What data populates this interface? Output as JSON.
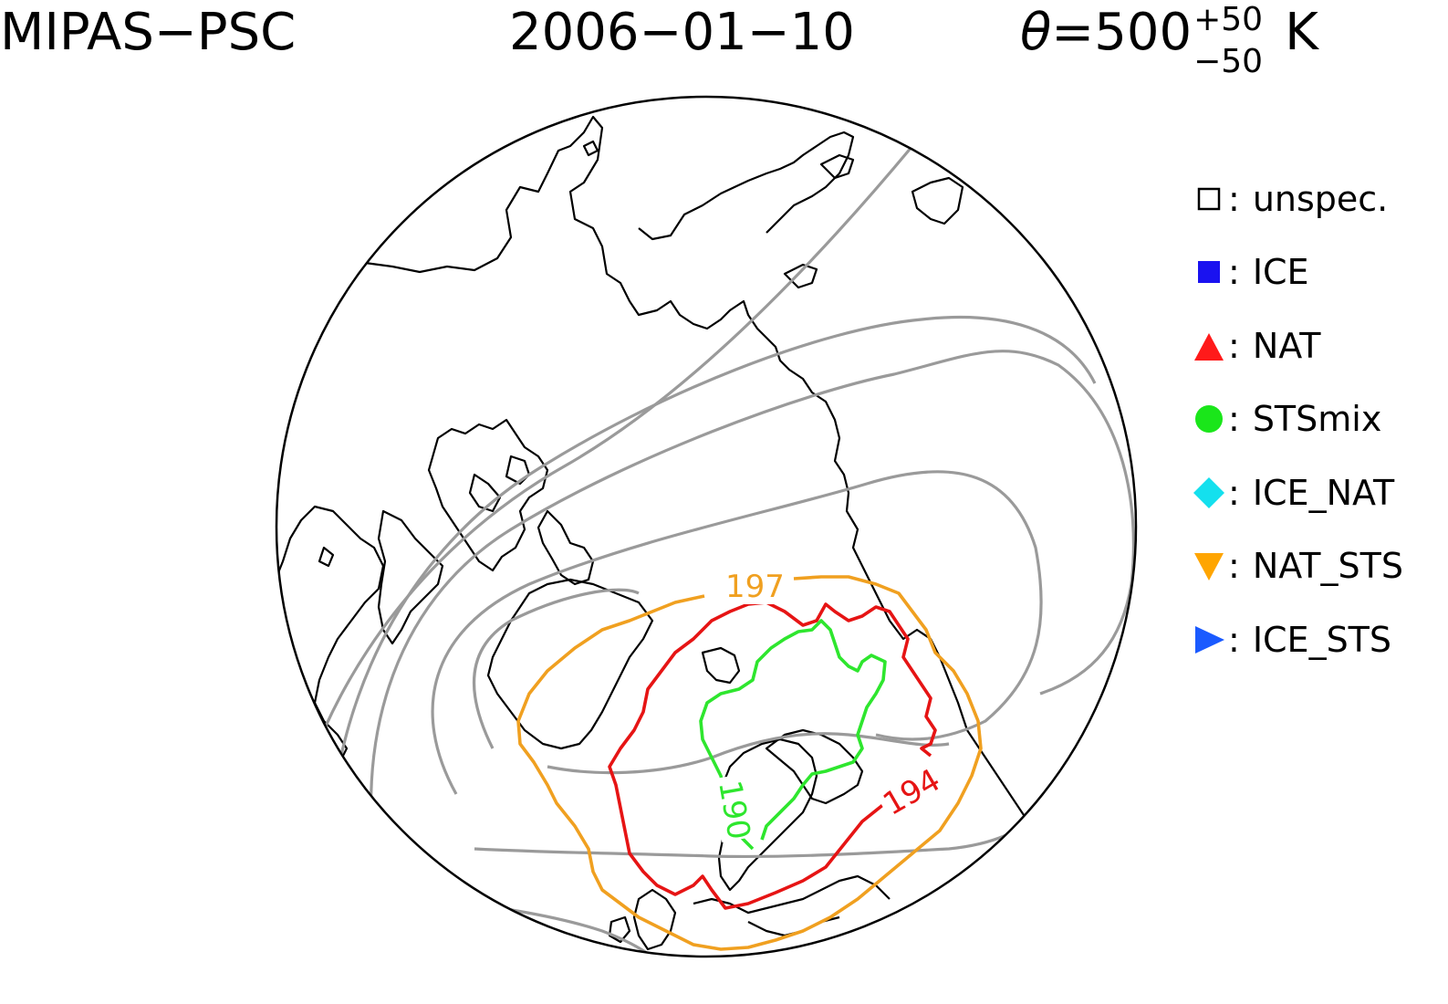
{
  "title": {
    "left": "MIPAS−PSC",
    "date": "2006−01−10",
    "theta_symbol": "θ",
    "theta_eq": "=500",
    "theta_sup": "+50",
    "theta_sub": "−50",
    "theta_unit": "K"
  },
  "legend": [
    {
      "label": "unspec.",
      "marker": "open-square",
      "color": "#000000"
    },
    {
      "label": "ICE",
      "marker": "filled-square",
      "color": "#1a12f0"
    },
    {
      "label": "NAT",
      "marker": "triangle-up",
      "color": "#ff1a1a"
    },
    {
      "label": "STSmix",
      "marker": "circle",
      "color": "#1ae61a"
    },
    {
      "label": "ICE_NAT",
      "marker": "diamond",
      "color": "#14e0ee"
    },
    {
      "label": "NAT_STS",
      "marker": "triangle-down",
      "color": "#ffa500"
    },
    {
      "label": "ICE_STS",
      "marker": "triangle-right",
      "color": "#1a5aff"
    }
  ],
  "contours": {
    "nat_sts_label": "197",
    "nat_label": "194",
    "sts_label": "190",
    "colors": {
      "gray": "#9a9a9a",
      "orange": "#f0a020",
      "red": "#e61414",
      "green": "#2ee62e"
    }
  }
}
